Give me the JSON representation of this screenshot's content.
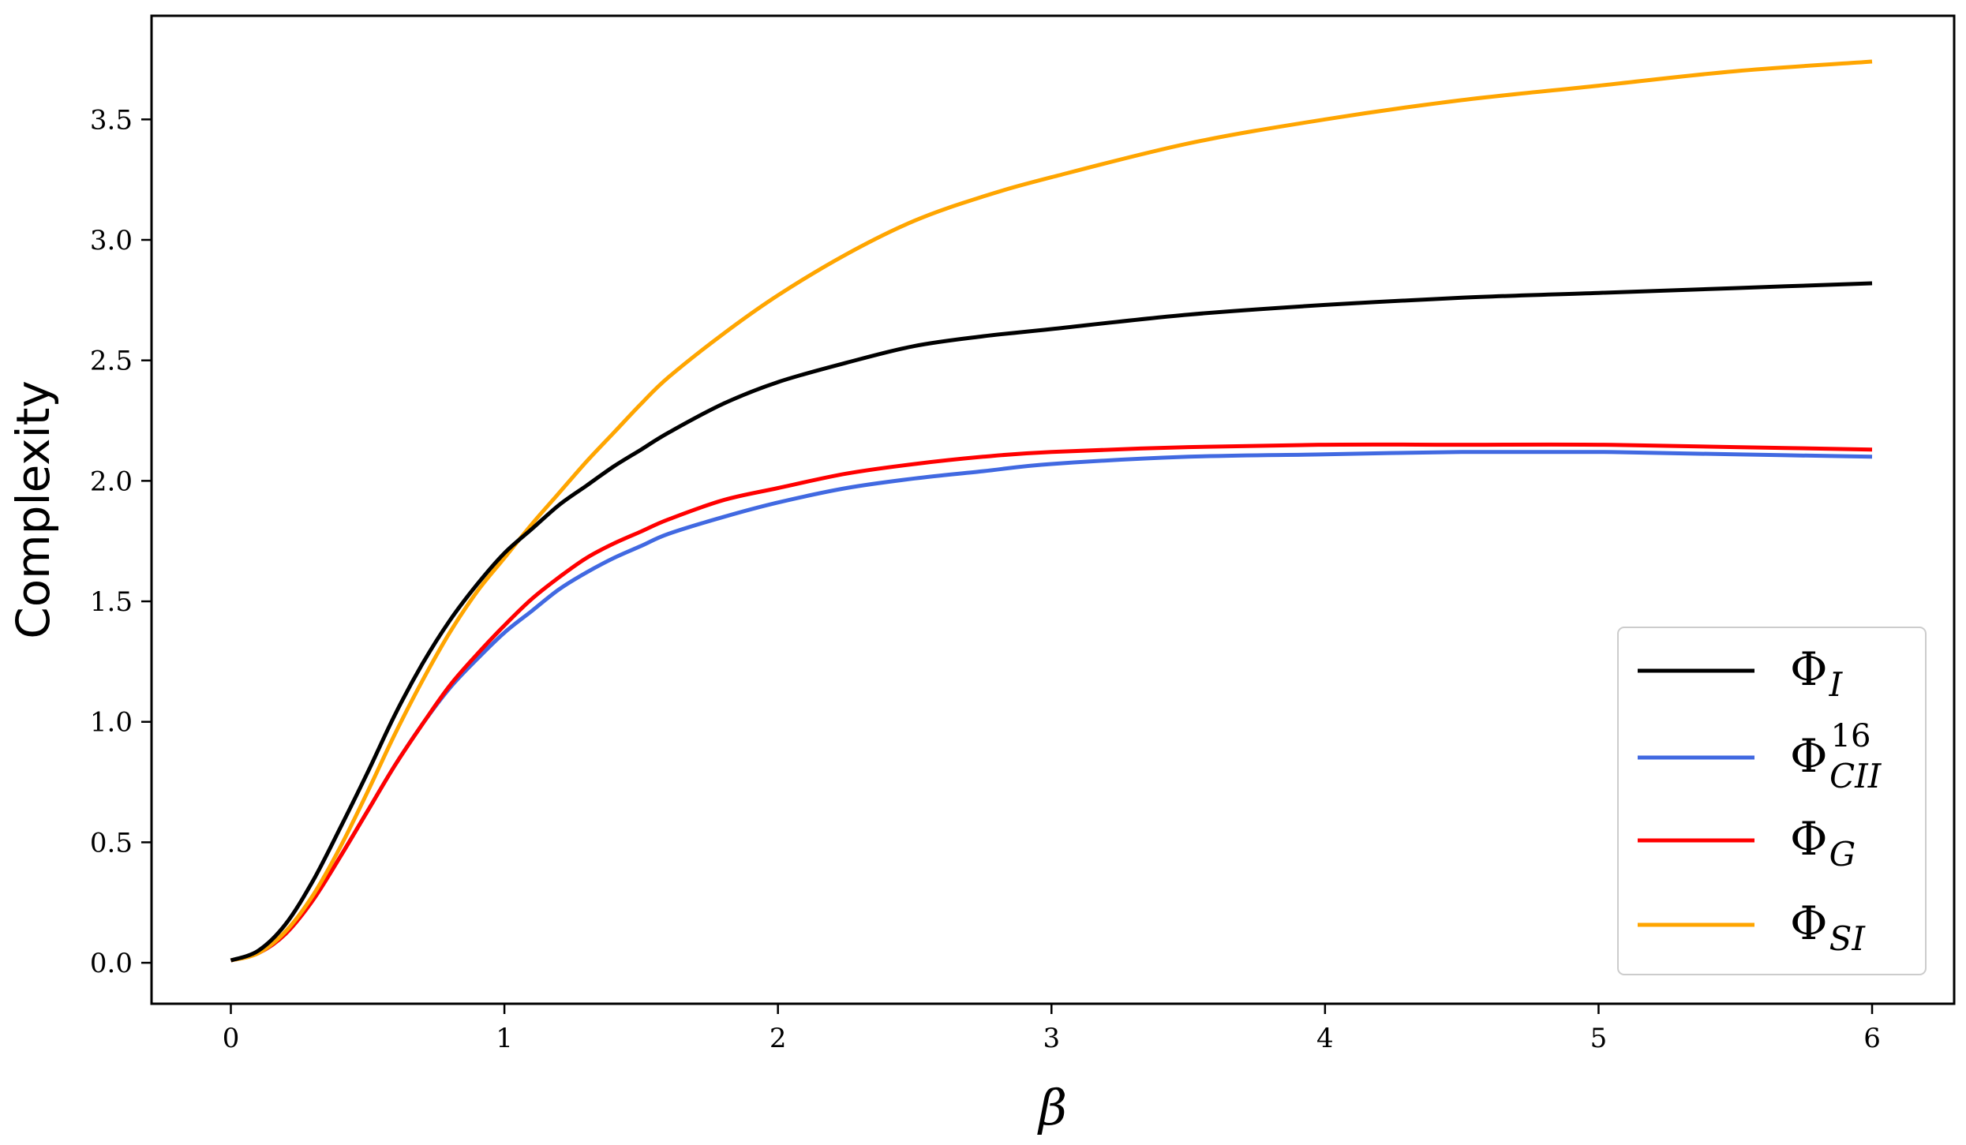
{
  "chart_data": {
    "type": "line",
    "title": "",
    "xlabel": "β",
    "ylabel": "Complexity",
    "xlim": [
      -0.29,
      6.3
    ],
    "ylim": [
      -0.17,
      3.93
    ],
    "xticks": [
      0,
      1,
      2,
      3,
      4,
      5,
      6
    ],
    "yticks": [
      0.0,
      0.5,
      1.0,
      1.5,
      2.0,
      2.5,
      3.0,
      3.5
    ],
    "xtick_labels": [
      "0",
      "1",
      "2",
      "3",
      "4",
      "5",
      "6"
    ],
    "ytick_labels": [
      "0.0",
      "0.5",
      "1.0",
      "1.5",
      "2.0",
      "2.5",
      "3.0",
      "3.5"
    ],
    "grid": false,
    "legend_position": "lower-right",
    "x": [
      0,
      0.1,
      0.2,
      0.3,
      0.4,
      0.5,
      0.6,
      0.7,
      0.8,
      0.9,
      1.0,
      1.1,
      1.2,
      1.3,
      1.4,
      1.5,
      1.6,
      1.8,
      2.0,
      2.25,
      2.5,
      2.75,
      3.0,
      3.5,
      4.0,
      4.5,
      5.0,
      5.5,
      6.0
    ],
    "series": [
      {
        "name_main": "Φ",
        "name_sub": "I",
        "name_sup": "",
        "color": "#000000",
        "values": [
          0.01,
          0.05,
          0.16,
          0.34,
          0.56,
          0.79,
          1.03,
          1.24,
          1.42,
          1.57,
          1.7,
          1.8,
          1.9,
          1.98,
          2.06,
          2.13,
          2.2,
          2.32,
          2.41,
          2.49,
          2.56,
          2.6,
          2.63,
          2.69,
          2.73,
          2.76,
          2.78,
          2.8,
          2.82
        ]
      },
      {
        "name_main": "Φ",
        "name_sub": "CII",
        "name_sup": "16",
        "color": "#4169e1",
        "values": [
          0.01,
          0.04,
          0.12,
          0.26,
          0.44,
          0.63,
          0.82,
          0.99,
          1.14,
          1.26,
          1.37,
          1.46,
          1.55,
          1.62,
          1.68,
          1.73,
          1.78,
          1.85,
          1.91,
          1.97,
          2.01,
          2.04,
          2.07,
          2.1,
          2.11,
          2.12,
          2.12,
          2.11,
          2.1
        ]
      },
      {
        "name_main": "Φ",
        "name_sub": "G",
        "name_sup": "",
        "color": "#ff0000",
        "values": [
          0.01,
          0.04,
          0.12,
          0.26,
          0.44,
          0.63,
          0.82,
          0.99,
          1.15,
          1.28,
          1.4,
          1.51,
          1.6,
          1.68,
          1.74,
          1.79,
          1.84,
          1.92,
          1.97,
          2.03,
          2.07,
          2.1,
          2.12,
          2.14,
          2.15,
          2.15,
          2.15,
          2.14,
          2.13
        ]
      },
      {
        "name_main": "Φ",
        "name_sub": "SI",
        "name_sup": "",
        "color": "#ffa500",
        "values": [
          0.01,
          0.04,
          0.13,
          0.28,
          0.48,
          0.71,
          0.95,
          1.17,
          1.37,
          1.54,
          1.68,
          1.82,
          1.95,
          2.08,
          2.2,
          2.32,
          2.43,
          2.61,
          2.77,
          2.94,
          3.08,
          3.18,
          3.26,
          3.4,
          3.5,
          3.58,
          3.64,
          3.7,
          3.74
        ]
      }
    ]
  }
}
